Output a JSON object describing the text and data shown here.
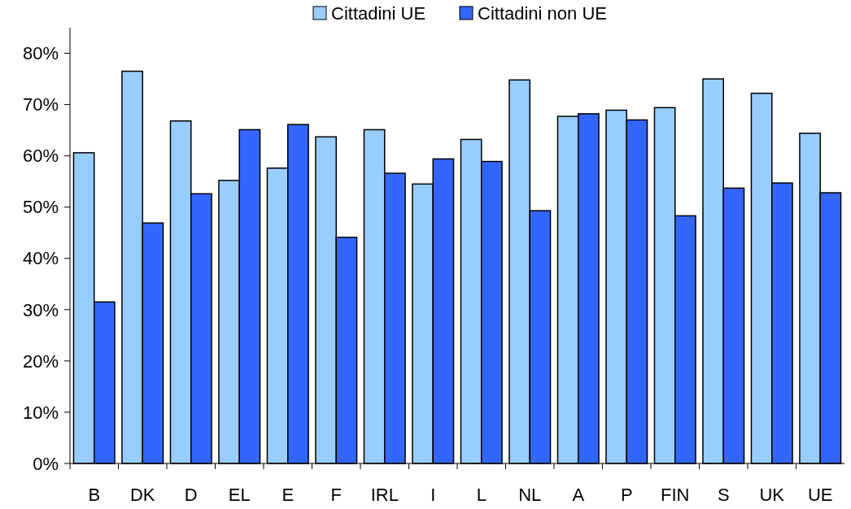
{
  "chart_data": {
    "type": "bar",
    "categories": [
      "B",
      "DK",
      "D",
      "EL",
      "E",
      "F",
      "IRL",
      "I",
      "L",
      "NL",
      "A",
      "P",
      "FIN",
      "S",
      "UK",
      "UE"
    ],
    "series": [
      {
        "name": "Cittadini UE",
        "color": "#99ccff",
        "values": [
          60.6,
          76.5,
          66.8,
          55.2,
          57.6,
          63.7,
          65.1,
          54.5,
          63.2,
          74.8,
          67.7,
          68.9,
          69.4,
          75.0,
          72.2,
          64.4
        ]
      },
      {
        "name": "Cittadini non UE",
        "color": "#3366ff",
        "values": [
          31.5,
          46.9,
          52.6,
          65.1,
          66.1,
          44.1,
          56.6,
          59.4,
          58.9,
          49.3,
          68.2,
          67.0,
          48.3,
          53.7,
          54.7,
          52.8
        ]
      }
    ],
    "ylim": [
      0,
      85
    ],
    "yticks": [
      {
        "value": 0,
        "label": "0%"
      },
      {
        "value": 10,
        "label": "10%"
      },
      {
        "value": 20,
        "label": "20%"
      },
      {
        "value": 30,
        "label": "30%"
      },
      {
        "value": 40,
        "label": "40%"
      },
      {
        "value": 50,
        "label": "50%"
      },
      {
        "value": 60,
        "label": "60%"
      },
      {
        "value": 70,
        "label": "70%"
      },
      {
        "value": 80,
        "label": "80%"
      }
    ],
    "grid": false,
    "legend": "top"
  }
}
